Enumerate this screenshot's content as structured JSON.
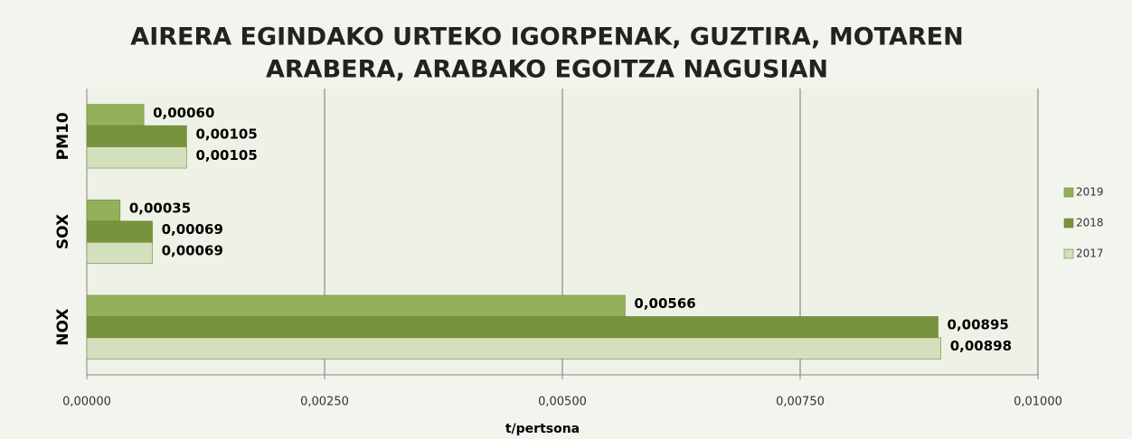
{
  "chart_data": {
    "type": "bar",
    "orientation": "horizontal",
    "title": [
      "AIRERA EGINDAKO URTEKO IGORPENAK, GUZTIRA, MOTAREN",
      "ARABERA, ARABAKO EGOITZA NAGUSIAN"
    ],
    "x_label": "t/pertsona",
    "categories": [
      "PM10",
      "SOX",
      "NOX"
    ],
    "series": [
      {
        "name": "2019",
        "color": "#92b15a",
        "values": [
          0.0006,
          0.00035,
          0.00566
        ],
        "value_labels": [
          "0,00060",
          "0,00035",
          "0,00566"
        ]
      },
      {
        "name": "2018",
        "color": "#77933c",
        "values": [
          0.00105,
          0.00069,
          0.00895
        ],
        "value_labels": [
          "0,00105",
          "0,00069",
          "0,00895"
        ]
      },
      {
        "name": "2017",
        "color": "#d3dfbd",
        "values": [
          0.00105,
          0.00069,
          0.00898
        ],
        "value_labels": [
          "0,00105",
          "0,00069",
          "0,00898"
        ]
      }
    ],
    "xlim": [
      0,
      0.01
    ],
    "xticks": [
      {
        "value": 0,
        "label": "0,00000"
      },
      {
        "value": 0.0025,
        "label": "0,00250"
      },
      {
        "value": 0.005,
        "label": "0,00500"
      },
      {
        "value": 0.0075,
        "label": "0,00750"
      },
      {
        "value": 0.01,
        "label": "0,01000"
      }
    ],
    "grid": true,
    "legend": "right"
  }
}
